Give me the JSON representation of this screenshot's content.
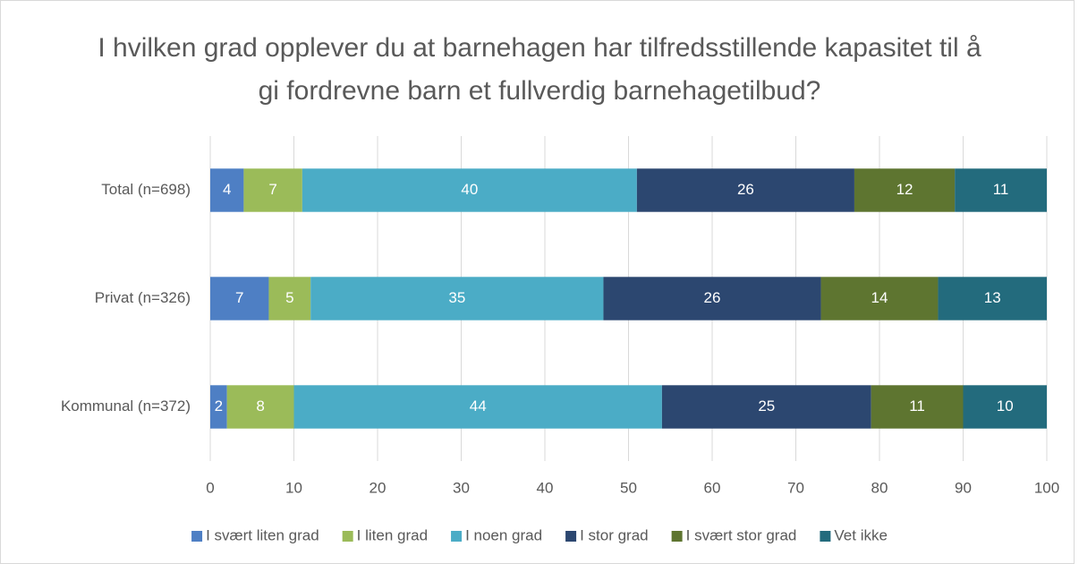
{
  "chart_data": {
    "type": "bar",
    "orientation": "horizontal",
    "stacked": true,
    "title": "I hvilken grad opplever du at barnehagen har tilfredsstillende kapasitet til å gi fordrevne barn et fullverdig barnehagetilbud?",
    "categories": [
      "Total (n=698)",
      "Privat (n=326)",
      "Kommunal (n=372)"
    ],
    "series": [
      {
        "name": "I svært liten grad",
        "color": "#4e7fc4",
        "values": [
          4,
          7,
          2
        ]
      },
      {
        "name": "I liten grad",
        "color": "#9bbb59",
        "values": [
          7,
          5,
          8
        ]
      },
      {
        "name": "I noen grad",
        "color": "#4bacc6",
        "values": [
          40,
          35,
          44
        ]
      },
      {
        "name": "I stor grad",
        "color": "#2c4770",
        "values": [
          26,
          26,
          25
        ]
      },
      {
        "name": "I svært stor grad",
        "color": "#5e7530",
        "values": [
          12,
          14,
          11
        ]
      },
      {
        "name": "Vet ikke",
        "color": "#236b7d",
        "values": [
          11,
          13,
          10
        ]
      }
    ],
    "xlim": [
      0,
      100
    ],
    "xticks": [
      0,
      10,
      20,
      30,
      40,
      50,
      60,
      70,
      80,
      90,
      100
    ],
    "grid": true,
    "legend": "bottom"
  }
}
